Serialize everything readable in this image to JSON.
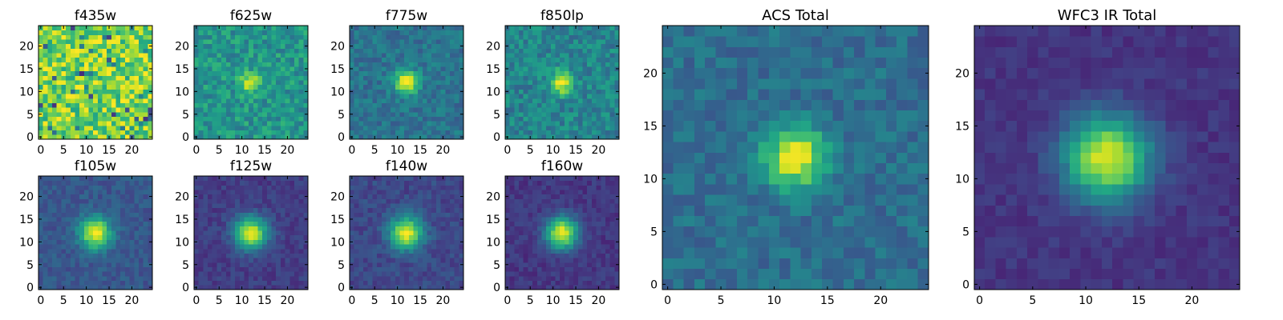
{
  "colormap": "viridis",
  "chart_data": [
    {
      "type": "heatmap",
      "title": "f435w",
      "kind": "noise",
      "center": [
        12,
        12
      ],
      "shape": [
        25,
        25
      ],
      "xticks": [
        "0",
        "5",
        "10",
        "15",
        "20"
      ],
      "yticks": [
        "0",
        "5",
        "10",
        "15",
        "20"
      ],
      "xlim": [
        0,
        25
      ],
      "ylim": [
        0,
        25
      ],
      "peak": 0.0,
      "sigma": 2.0,
      "base": 0.8,
      "noise": 0.22,
      "seed": 11
    },
    {
      "type": "heatmap",
      "title": "f625w",
      "kind": "source",
      "center": [
        12,
        12
      ],
      "shape": [
        25,
        25
      ],
      "xticks": [
        "0",
        "5",
        "10",
        "15",
        "20"
      ],
      "yticks": [
        "0",
        "5",
        "10",
        "15",
        "20"
      ],
      "xlim": [
        0,
        25
      ],
      "ylim": [
        0,
        25
      ],
      "peak": 0.45,
      "sigma": 1.5,
      "base": 0.52,
      "noise": 0.14,
      "seed": 23
    },
    {
      "type": "heatmap",
      "title": "f775w",
      "kind": "source",
      "center": [
        12,
        12
      ],
      "shape": [
        25,
        25
      ],
      "xticks": [
        "0",
        "5",
        "10",
        "15",
        "20"
      ],
      "yticks": [
        "0",
        "5",
        "10",
        "15",
        "20"
      ],
      "xlim": [
        0,
        25
      ],
      "ylim": [
        0,
        25
      ],
      "peak": 0.65,
      "sigma": 1.8,
      "base": 0.38,
      "noise": 0.1,
      "seed": 37
    },
    {
      "type": "heatmap",
      "title": "f850lp",
      "kind": "source",
      "center": [
        12,
        12
      ],
      "shape": [
        25,
        25
      ],
      "xticks": [
        "0",
        "5",
        "10",
        "15",
        "20"
      ],
      "yticks": [
        "0",
        "5",
        "10",
        "15",
        "20"
      ],
      "xlim": [
        0,
        25
      ],
      "ylim": [
        0,
        25
      ],
      "peak": 0.55,
      "sigma": 1.7,
      "base": 0.45,
      "noise": 0.13,
      "seed": 41
    },
    {
      "type": "heatmap",
      "title": "ACS Total",
      "kind": "source",
      "center": [
        12,
        12
      ],
      "shape": [
        25,
        25
      ],
      "xticks": [
        "0",
        "5",
        "10",
        "15",
        "20"
      ],
      "yticks": [
        "0",
        "5",
        "10",
        "15",
        "20"
      ],
      "xlim": [
        0,
        25
      ],
      "ylim": [
        0,
        25
      ],
      "peak": 0.62,
      "sigma": 2.0,
      "base": 0.36,
      "noise": 0.09,
      "seed": 53
    },
    {
      "type": "heatmap",
      "title": "f105w",
      "kind": "source",
      "center": [
        12,
        12
      ],
      "shape": [
        25,
        25
      ],
      "xticks": [
        "0",
        "5",
        "10",
        "15",
        "20"
      ],
      "yticks": [
        "0",
        "5",
        "10",
        "15",
        "20"
      ],
      "xlim": [
        0,
        25
      ],
      "ylim": [
        0,
        25
      ],
      "peak": 0.72,
      "sigma": 2.4,
      "base": 0.27,
      "noise": 0.07,
      "seed": 61
    },
    {
      "type": "heatmap",
      "title": "f125w",
      "kind": "source",
      "center": [
        12,
        12
      ],
      "shape": [
        25,
        25
      ],
      "xticks": [
        "0",
        "5",
        "10",
        "15",
        "20"
      ],
      "yticks": [
        "0",
        "5",
        "10",
        "15",
        "20"
      ],
      "xlim": [
        0,
        25
      ],
      "ylim": [
        0,
        25
      ],
      "peak": 0.78,
      "sigma": 2.5,
      "base": 0.18,
      "noise": 0.06,
      "seed": 67
    },
    {
      "type": "heatmap",
      "title": "f140w",
      "kind": "source",
      "center": [
        12,
        12
      ],
      "shape": [
        25,
        25
      ],
      "xticks": [
        "0",
        "5",
        "10",
        "15",
        "20"
      ],
      "yticks": [
        "0",
        "5",
        "10",
        "15",
        "20"
      ],
      "xlim": [
        0,
        25
      ],
      "ylim": [
        0,
        25
      ],
      "peak": 0.74,
      "sigma": 2.5,
      "base": 0.22,
      "noise": 0.07,
      "seed": 71
    },
    {
      "type": "heatmap",
      "title": "f160w",
      "kind": "source",
      "center": [
        12,
        12
      ],
      "shape": [
        25,
        25
      ],
      "xticks": [
        "0",
        "5",
        "10",
        "15",
        "20"
      ],
      "yticks": [
        "0",
        "5",
        "10",
        "15",
        "20"
      ],
      "xlim": [
        0,
        25
      ],
      "ylim": [
        0,
        25
      ],
      "peak": 0.8,
      "sigma": 2.5,
      "base": 0.16,
      "noise": 0.06,
      "seed": 83
    },
    {
      "type": "heatmap",
      "title": "WFC3 IR Total",
      "kind": "source",
      "center": [
        12,
        12
      ],
      "shape": [
        25,
        25
      ],
      "xticks": [
        "0",
        "5",
        "10",
        "15",
        "20"
      ],
      "yticks": [
        "0",
        "5",
        "10",
        "15",
        "20"
      ],
      "xlim": [
        0,
        25
      ],
      "ylim": [
        0,
        25
      ],
      "peak": 0.8,
      "sigma": 2.8,
      "base": 0.15,
      "noise": 0.045,
      "seed": 97
    }
  ]
}
